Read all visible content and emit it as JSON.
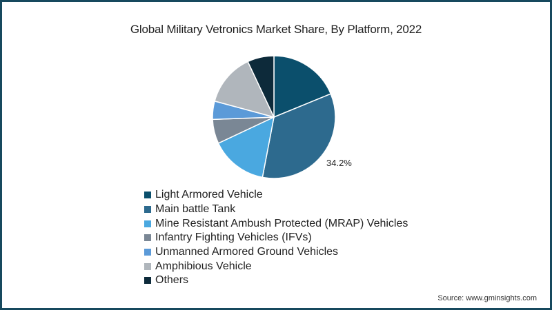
{
  "chart_data": {
    "type": "pie",
    "title": "Global Military Vetronics Market Share, By Platform, 2022",
    "categories": [
      "Light Armored Vehicle",
      "Main battle Tank",
      "Mine Resistant Ambush Protected (MRAP) Vehicles",
      "Infantry Fighting Vehicles (IFVs)",
      "Unmanned Armored Ground Vehicles",
      "Amphibious Vehicle",
      "Others"
    ],
    "values": [
      18.8,
      34.2,
      15.0,
      6.4,
      4.8,
      13.8,
      7.0
    ],
    "colors": [
      "#0b4f6c",
      "#2d6a8e",
      "#4aa8e0",
      "#7a8795",
      "#5b9ad8",
      "#b0b6bc",
      "#0d2a3a"
    ],
    "annotations": [
      {
        "category": "Main battle Tank",
        "text": "34.2%"
      }
    ],
    "start_angle_deg": 0,
    "direction": "clockwise",
    "legend_position": "bottom-left"
  },
  "title": "Global Military Vetronics Market Share, By Platform, 2022",
  "pie_label": "34.2%",
  "legend": [
    {
      "label": "Light Armored Vehicle",
      "color": "#0b4f6c"
    },
    {
      "label": "Main battle Tank",
      "color": "#2d6a8e"
    },
    {
      "label": "Mine Resistant Ambush Protected (MRAP) Vehicles",
      "color": "#4aa8e0"
    },
    {
      "label": "Infantry Fighting Vehicles (IFVs)",
      "color": "#7a8795"
    },
    {
      "label": "Unmanned Armored Ground Vehicles",
      "color": "#5b9ad8"
    },
    {
      "label": "Amphibious Vehicle",
      "color": "#b0b6bc"
    },
    {
      "label": "Others",
      "color": "#0d2a3a"
    }
  ],
  "source": "Source: www.gminsights.com",
  "frame_color": "#17495e"
}
